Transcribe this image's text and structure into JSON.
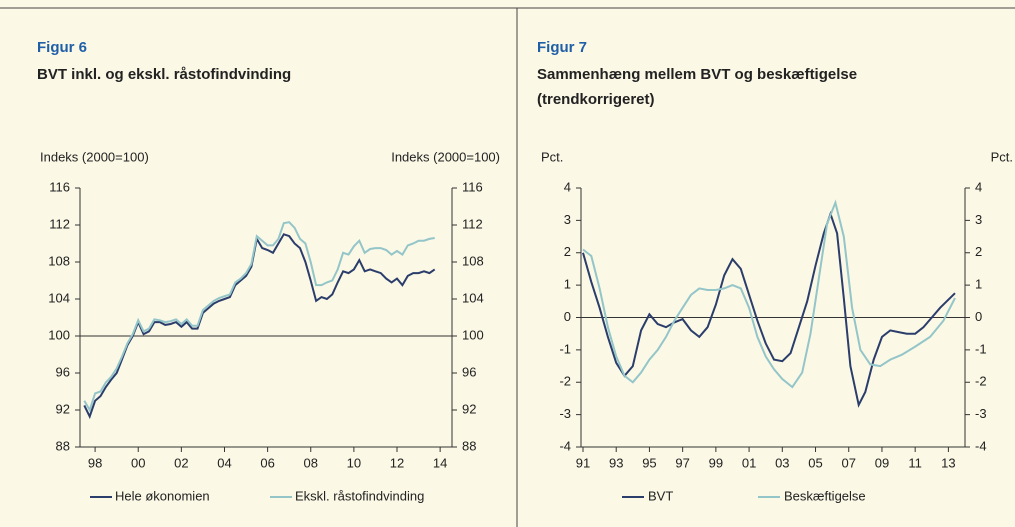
{
  "chart_data": [
    {
      "type": "line",
      "figure": "Figur 6",
      "title": [
        "BVT inkl. og ekskl. råstofindvinding"
      ],
      "y_label": "Indeks (2000=100)",
      "y2_label": "Indeks (2000=100)",
      "xlim": [
        1997.3,
        2014.55
      ],
      "ylim": [
        88,
        116
      ],
      "hline": 100,
      "xticks": [
        {
          "value": 1998,
          "label": "98"
        },
        {
          "value": 2000,
          "label": "00"
        },
        {
          "value": 2002,
          "label": "02"
        },
        {
          "value": 2004,
          "label": "04"
        },
        {
          "value": 2006,
          "label": "06"
        },
        {
          "value": 2008,
          "label": "08"
        },
        {
          "value": 2010,
          "label": "10"
        },
        {
          "value": 2012,
          "label": "12"
        },
        {
          "value": 2014,
          "label": "14"
        }
      ],
      "yticks": [
        88,
        92,
        96,
        100,
        104,
        108,
        112,
        116
      ],
      "x": [
        1997.5,
        1997.75,
        1998,
        1998.25,
        1998.5,
        1998.75,
        1999,
        1999.25,
        1999.5,
        1999.75,
        2000,
        2000.25,
        2000.5,
        2000.75,
        2001,
        2001.25,
        2001.5,
        2001.75,
        2002,
        2002.25,
        2002.5,
        2002.75,
        2003,
        2003.25,
        2003.5,
        2003.75,
        2004,
        2004.25,
        2004.5,
        2004.75,
        2005,
        2005.25,
        2005.5,
        2005.75,
        2006,
        2006.25,
        2006.5,
        2006.75,
        2007,
        2007.25,
        2007.5,
        2007.75,
        2008,
        2008.25,
        2008.5,
        2008.75,
        2009,
        2009.25,
        2009.5,
        2009.75,
        2010,
        2010.25,
        2010.5,
        2010.75,
        2011,
        2011.25,
        2011.5,
        2011.75,
        2012,
        2012.25,
        2012.5,
        2012.75,
        2013,
        2013.25,
        2013.5,
        2013.75
      ],
      "series": [
        {
          "name": "Hele økonomien",
          "color": "#2b3d6b",
          "values": [
            92.5,
            91.3,
            93,
            93.5,
            94.5,
            95.3,
            96,
            97.5,
            99,
            100,
            101.5,
            100.2,
            100.5,
            101.5,
            101.5,
            101.2,
            101.3,
            101.5,
            101,
            101.5,
            100.8,
            100.8,
            102.5,
            103,
            103.5,
            103.8,
            104,
            104.2,
            105.5,
            106,
            106.5,
            107.5,
            110.5,
            109.5,
            109.3,
            109,
            110,
            111,
            110.8,
            110,
            109.5,
            108,
            106,
            103.8,
            104.2,
            104,
            104.5,
            105.8,
            107,
            106.8,
            107.2,
            108.2,
            107,
            107.2,
            107,
            106.8,
            106.2,
            105.8,
            106.2,
            105.5,
            106.5,
            106.8,
            106.8,
            107,
            106.8,
            107.2
          ]
        },
        {
          "name": "Ekskl. råstofindvinding",
          "color": "#93c5c9",
          "values": [
            93,
            92,
            93.8,
            94,
            95,
            95.6,
            96.5,
            97.8,
            99.2,
            100.2,
            101.7,
            100.5,
            100.8,
            101.8,
            101.7,
            101.5,
            101.6,
            101.8,
            101.3,
            101.8,
            101.1,
            101.1,
            102.8,
            103.3,
            103.8,
            104.1,
            104.3,
            104.5,
            105.8,
            106.2,
            106.8,
            107.8,
            110.8,
            110.3,
            109.8,
            109.8,
            110.5,
            112.2,
            112.3,
            111.7,
            110.5,
            110,
            108,
            105.5,
            105.5,
            105.8,
            106,
            107.2,
            109,
            108.8,
            109.7,
            110.3,
            109,
            109.4,
            109.5,
            109.5,
            109.3,
            108.8,
            109.2,
            108.8,
            109.8,
            110,
            110.3,
            110.3,
            110.5,
            110.6
          ]
        }
      ]
    },
    {
      "type": "line",
      "figure": "Figur 7",
      "title": [
        "Sammenhæng mellem BVT og beskæftigelse",
        "(trendkorrigeret)"
      ],
      "y_label": "Pct.",
      "y2_label": "Pct.",
      "xlim": [
        1990.88,
        2014.0
      ],
      "ylim": [
        -4,
        4
      ],
      "hline": 0,
      "xticks": [
        {
          "value": 1991,
          "label": "91"
        },
        {
          "value": 1993,
          "label": "93"
        },
        {
          "value": 1995,
          "label": "95"
        },
        {
          "value": 1997,
          "label": "97"
        },
        {
          "value": 1999,
          "label": "99"
        },
        {
          "value": 2001,
          "label": "01"
        },
        {
          "value": 2003,
          "label": "03"
        },
        {
          "value": 2005,
          "label": "05"
        },
        {
          "value": 2007,
          "label": "07"
        },
        {
          "value": 2009,
          "label": "09"
        },
        {
          "value": 2011,
          "label": "11"
        },
        {
          "value": 2013,
          "label": "13"
        }
      ],
      "yticks": [
        -4,
        -3,
        -2,
        -1,
        0,
        1,
        2,
        3,
        4
      ],
      "series": [
        {
          "name": "BVT",
          "color": "#2b3d6b",
          "x": [
            1991,
            1991.5,
            1992,
            1992.5,
            1993,
            1993.5,
            1994,
            1994.5,
            1995,
            1995.5,
            1996,
            1996.5,
            1997,
            1997.5,
            1998,
            1998.5,
            1999,
            1999.5,
            2000,
            2000.5,
            2001,
            2001.5,
            2002,
            2002.5,
            2003,
            2003.5,
            2004,
            2004.5,
            2005,
            2005.5,
            2005.9,
            2006.3,
            2006.7,
            2007.1,
            2007.6,
            2008,
            2008.5,
            2009,
            2009.5,
            2010,
            2010.5,
            2011,
            2011.5,
            2012,
            2012.5,
            2013.4
          ],
          "values": [
            2.0,
            1.1,
            0.3,
            -0.6,
            -1.4,
            -1.8,
            -1.5,
            -0.4,
            0.1,
            -0.2,
            -0.3,
            -0.15,
            -0.05,
            -0.4,
            -0.6,
            -0.3,
            0.4,
            1.3,
            1.8,
            1.5,
            0.7,
            -0.1,
            -0.8,
            -1.3,
            -1.35,
            -1.1,
            -0.3,
            0.5,
            1.6,
            2.6,
            3.2,
            2.6,
            0.6,
            -1.5,
            -2.7,
            -2.3,
            -1.3,
            -0.6,
            -0.4,
            -0.45,
            -0.5,
            -0.5,
            -0.3,
            0,
            0.3,
            0.75
          ]
        },
        {
          "name": "Beskæftigelse",
          "color": "#93c5c9",
          "x": [
            1991,
            1991.5,
            1992,
            1992.5,
            1993,
            1993.5,
            1994,
            1994.5,
            1995,
            1995.5,
            1996,
            1996.5,
            1997,
            1997.5,
            1998,
            1998.5,
            1999,
            1999.5,
            2000,
            2000.5,
            2001,
            2001.5,
            2002,
            2002.5,
            2003,
            2003.6,
            2004.2,
            2004.7,
            2005.2,
            2005.7,
            2006.2,
            2006.7,
            2007.2,
            2007.7,
            2008.3,
            2008.9,
            2009.5,
            2010.2,
            2011,
            2011.9,
            2012.7,
            2013.4
          ],
          "values": [
            2.1,
            1.9,
            0.9,
            -0.3,
            -1.2,
            -1.8,
            -2.0,
            -1.7,
            -1.3,
            -1.0,
            -0.6,
            -0.1,
            0.3,
            0.7,
            0.9,
            0.85,
            0.85,
            0.9,
            1.0,
            0.9,
            0.3,
            -0.6,
            -1.2,
            -1.6,
            -1.9,
            -2.15,
            -1.7,
            -0.5,
            1.2,
            2.9,
            3.55,
            2.5,
            0.3,
            -1.0,
            -1.45,
            -1.5,
            -1.3,
            -1.15,
            -0.9,
            -0.6,
            -0.1,
            0.6
          ]
        }
      ]
    }
  ]
}
